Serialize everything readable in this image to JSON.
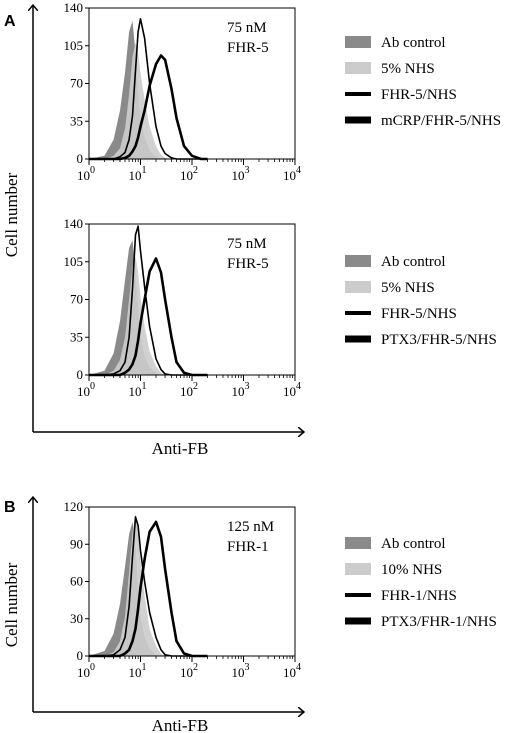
{
  "figure": {
    "ylabel": "Cell number",
    "xlabel": "Anti-FB"
  },
  "colors": {
    "ab_control": "#8a8a8a",
    "nhs": "#cccccc",
    "fhr_nhs": "#000000",
    "ligand_fhr_nhs": "#000000"
  },
  "chart_data": [
    {
      "type": "area",
      "panel": "A",
      "annotation": [
        "75 nM",
        "FHR-5"
      ],
      "ylim": [
        0,
        140
      ],
      "yticks": [
        "140",
        "105",
        "70",
        "35",
        "0"
      ],
      "xscale": "log",
      "xlim": [
        1,
        10000
      ],
      "xticks": [
        {
          "base": "10",
          "exp": "0"
        },
        {
          "base": "10",
          "exp": "1"
        },
        {
          "base": "10",
          "exp": "2"
        },
        {
          "base": "10",
          "exp": "3"
        },
        {
          "base": "10",
          "exp": "4"
        }
      ],
      "x": [
        1,
        2,
        3,
        4,
        5,
        6,
        7,
        8,
        9,
        10,
        12,
        15,
        20,
        25,
        30,
        40,
        50,
        70,
        100,
        150,
        200
      ],
      "series": [
        {
          "name": "Ab control",
          "style": "fill-dark",
          "values": [
            0,
            3,
            18,
            45,
            80,
            118,
            128,
            98,
            62,
            38,
            20,
            8,
            2,
            0,
            0,
            0,
            0,
            0,
            0,
            0,
            0
          ]
        },
        {
          "name": "5% NHS",
          "style": "fill-light",
          "values": [
            0,
            0,
            3,
            10,
            28,
            60,
            95,
            108,
            98,
            80,
            55,
            30,
            12,
            4,
            1,
            0,
            0,
            0,
            0,
            0,
            0
          ]
        },
        {
          "name": "FHR-5/NHS",
          "style": "line",
          "values": [
            0,
            0,
            0,
            2,
            6,
            18,
            40,
            82,
            118,
            130,
            112,
            70,
            30,
            12,
            5,
            1,
            0,
            0,
            0,
            0,
            0
          ]
        },
        {
          "name": "mCRP/FHR-5/NHS",
          "style": "line-bold",
          "values": [
            0,
            0,
            0,
            0,
            1,
            3,
            7,
            12,
            20,
            30,
            45,
            68,
            88,
            96,
            92,
            65,
            38,
            12,
            3,
            0,
            0
          ]
        }
      ]
    },
    {
      "type": "area",
      "panel": "",
      "annotation": [
        "75 nM",
        "FHR-5"
      ],
      "ylim": [
        0,
        140
      ],
      "yticks": [
        "140",
        "105",
        "70",
        "35",
        "0"
      ],
      "xscale": "log",
      "xlim": [
        1,
        10000
      ],
      "xticks": [
        {
          "base": "10",
          "exp": "0"
        },
        {
          "base": "10",
          "exp": "1"
        },
        {
          "base": "10",
          "exp": "2"
        },
        {
          "base": "10",
          "exp": "3"
        },
        {
          "base": "10",
          "exp": "4"
        }
      ],
      "x": [
        1,
        2,
        3,
        4,
        5,
        6,
        7,
        8,
        9,
        10,
        12,
        15,
        20,
        25,
        30,
        40,
        50,
        70,
        100,
        150,
        200
      ],
      "series": [
        {
          "name": "Ab control",
          "style": "fill-dark",
          "values": [
            0,
            4,
            20,
            50,
            88,
            118,
            125,
            95,
            60,
            35,
            18,
            7,
            2,
            0,
            0,
            0,
            0,
            0,
            0,
            0,
            0
          ]
        },
        {
          "name": "5% NHS",
          "style": "fill-light",
          "values": [
            0,
            0,
            4,
            14,
            35,
            70,
            100,
            110,
            95,
            72,
            45,
            22,
            8,
            2,
            0,
            0,
            0,
            0,
            0,
            0,
            0
          ]
        },
        {
          "name": "FHR-5/NHS",
          "style": "line",
          "values": [
            0,
            0,
            1,
            4,
            12,
            35,
            80,
            130,
            138,
            115,
            82,
            45,
            15,
            5,
            1,
            0,
            0,
            0,
            0,
            0,
            0
          ]
        },
        {
          "name": "PTX3/FHR-5/NHS",
          "style": "line-bold",
          "values": [
            0,
            0,
            0,
            0,
            2,
            5,
            10,
            18,
            32,
            48,
            70,
            96,
            108,
            95,
            70,
            35,
            12,
            2,
            0,
            0,
            0
          ]
        }
      ]
    },
    {
      "type": "area",
      "panel": "B",
      "annotation": [
        "125 nM",
        "FHR-1"
      ],
      "ylim": [
        0,
        120
      ],
      "yticks": [
        "120",
        "90",
        "60",
        "30",
        "0"
      ],
      "xscale": "log",
      "xlim": [
        1,
        10000
      ],
      "xticks": [
        {
          "base": "10",
          "exp": "0"
        },
        {
          "base": "10",
          "exp": "1"
        },
        {
          "base": "10",
          "exp": "2"
        },
        {
          "base": "10",
          "exp": "3"
        },
        {
          "base": "10",
          "exp": "4"
        }
      ],
      "x": [
        1,
        2,
        3,
        4,
        5,
        6,
        7,
        8,
        9,
        10,
        12,
        15,
        20,
        25,
        30,
        40,
        50,
        70,
        100,
        150,
        200
      ],
      "series": [
        {
          "name": "Ab control",
          "style": "fill-dark",
          "values": [
            0,
            4,
            18,
            42,
            72,
            98,
            108,
            88,
            55,
            32,
            15,
            6,
            1,
            0,
            0,
            0,
            0,
            0,
            0,
            0,
            0
          ]
        },
        {
          "name": "10% NHS",
          "style": "fill-light",
          "values": [
            0,
            0,
            3,
            12,
            32,
            68,
            100,
            115,
            100,
            78,
            48,
            22,
            8,
            2,
            0,
            0,
            0,
            0,
            0,
            0,
            0
          ]
        },
        {
          "name": "FHR-1/NHS",
          "style": "line",
          "values": [
            0,
            0,
            1,
            5,
            15,
            40,
            80,
            112,
            105,
            85,
            60,
            35,
            15,
            5,
            1,
            0,
            0,
            0,
            0,
            0,
            0
          ]
        },
        {
          "name": "PTX3/FHR-1/NHS",
          "style": "line-bold",
          "values": [
            0,
            0,
            0,
            0,
            2,
            5,
            12,
            22,
            38,
            55,
            78,
            100,
            108,
            96,
            70,
            35,
            12,
            2,
            0,
            0,
            0
          ]
        }
      ]
    }
  ]
}
